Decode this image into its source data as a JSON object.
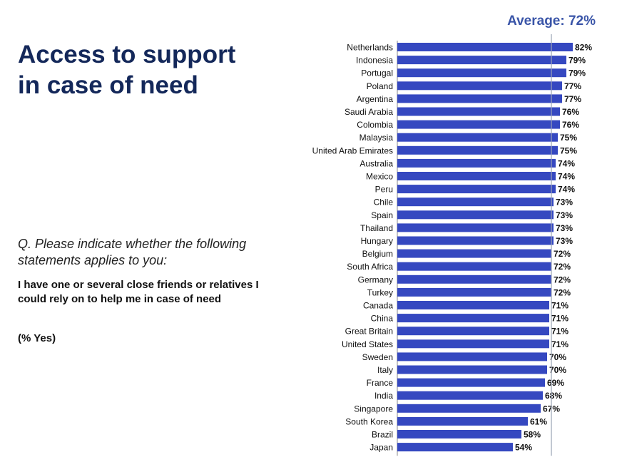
{
  "title": "Access to support in case of need",
  "question": "Q. Please indicate whether the following statements applies to you:",
  "statement": "I have one or several close friends or relatives I could rely on to help me in case of need",
  "note": "(% Yes)",
  "average_label": "Average: 72%",
  "chart_data": {
    "type": "bar",
    "orientation": "horizontal",
    "title": "",
    "xlabel": "",
    "ylabel": "",
    "unit": "%",
    "average": 72,
    "bar_color": "#3548c0",
    "categories": [
      "Netherlands",
      "Indonesia",
      "Portugal",
      "Poland",
      "Argentina",
      "Saudi Arabia",
      "Colombia",
      "Malaysia",
      "United Arab Emirates",
      "Australia",
      "Mexico",
      "Peru",
      "Chile",
      "Spain",
      "Thailand",
      "Hungary",
      "Belgium",
      "South Africa",
      "Germany",
      "Turkey",
      "Canada",
      "China",
      "Great Britain",
      "United States",
      "Sweden",
      "Italy",
      "France",
      "India",
      "Singapore",
      "South Korea",
      "Brazil",
      "Japan"
    ],
    "values": [
      82,
      79,
      79,
      77,
      77,
      76,
      76,
      75,
      75,
      74,
      74,
      74,
      73,
      73,
      73,
      73,
      72,
      72,
      72,
      72,
      71,
      71,
      71,
      71,
      70,
      70,
      69,
      68,
      67,
      61,
      58,
      54
    ],
    "value_labels": [
      "82%",
      "79%",
      "79%",
      "77%",
      "77%",
      "76%",
      "76%",
      "75%",
      "75%",
      "74%",
      "74%",
      "74%",
      "73%",
      "73%",
      "73%",
      "73%",
      "72%",
      "72%",
      "72%",
      "72%",
      "71%",
      "71%",
      "71%",
      "71%",
      "70%",
      "70%",
      "69%",
      "68%",
      "67%",
      "61%",
      "58%",
      "54%"
    ]
  }
}
